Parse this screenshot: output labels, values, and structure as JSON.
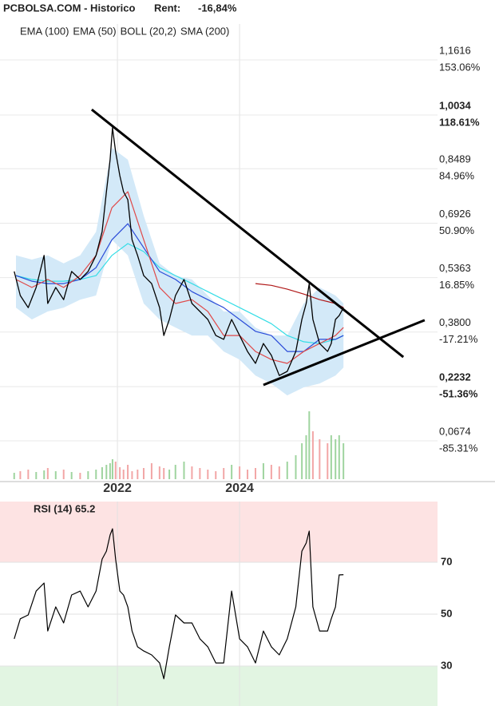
{
  "chart_data": [
    {
      "type": "line",
      "title": "PCBOLSA.COM - Historico",
      "subtitle": "Rent:",
      "rent": {
        "value": -16.84,
        "label": "-16,84%"
      },
      "rent_color": "#d62020",
      "xlim": [
        2020.078,
        2027.24
      ],
      "xticks": [
        2022,
        2024
      ],
      "ylim": [
        -0.0427,
        1.2648
      ],
      "yticks": [
        {
          "value": 1.1616,
          "label": "1,1616"
        },
        {
          "value": 1.0034,
          "label": "1,0034",
          "emphasis": true
        },
        {
          "value": 0.8489,
          "label": "0,8489"
        },
        {
          "value": 0.6926,
          "label": "0,6926"
        },
        {
          "value": 0.5363,
          "label": "0,5363"
        },
        {
          "value": 0.38,
          "label": "0,3800"
        },
        {
          "value": 0.2232,
          "label": "0,2232",
          "emphasis": true
        },
        {
          "value": 0.0674,
          "label": "0,0674"
        }
      ],
      "y2lim": [
        -109.3,
        175.55
      ],
      "y2ticks": [
        {
          "value": 153.06,
          "label": "153.06%"
        },
        {
          "value": 118.61,
          "label": "118.61%",
          "emphasis": true
        },
        {
          "value": 84.96,
          "label": "84.96%"
        },
        {
          "value": 50.9,
          "label": "50.90%"
        },
        {
          "value": 16.85,
          "label": "16.85%"
        },
        {
          "value": -17.21,
          "label": "-17.21%"
        },
        {
          "value": -51.36,
          "label": "-51.36%",
          "emphasis": true
        },
        {
          "value": -85.31,
          "label": "-85.31%"
        }
      ],
      "grid": true,
      "price": {
        "color": "#000000",
        "x": [
          2020.31,
          2020.41,
          2020.54,
          2020.67,
          2020.8,
          2020.86,
          2020.99,
          2021.12,
          2021.25,
          2021.39,
          2021.52,
          2021.65,
          2021.75,
          2021.82,
          2021.88,
          2021.92,
          2021.97,
          2022.04,
          2022.1,
          2022.17,
          2022.24,
          2022.33,
          2022.43,
          2022.56,
          2022.69,
          2022.76,
          2022.85,
          2022.95,
          2023.09,
          2023.22,
          2023.35,
          2023.48,
          2023.61,
          2023.74,
          2023.87,
          2024.0,
          2024.13,
          2024.26,
          2024.39,
          2024.52,
          2024.65,
          2024.78,
          2024.92,
          2025.02,
          2025.09,
          2025.14,
          2025.2,
          2025.31,
          2025.44,
          2025.5,
          2025.57,
          2025.63,
          2025.7
        ],
        "values": [
          0.554,
          0.485,
          0.45,
          0.508,
          0.6,
          0.462,
          0.508,
          0.473,
          0.554,
          0.531,
          0.554,
          0.6,
          0.668,
          0.783,
          0.875,
          0.967,
          0.898,
          0.829,
          0.783,
          0.76,
          0.645,
          0.6,
          0.542,
          0.519,
          0.45,
          0.37,
          0.416,
          0.485,
          0.531,
          0.462,
          0.439,
          0.416,
          0.37,
          0.359,
          0.416,
          0.37,
          0.324,
          0.29,
          0.347,
          0.313,
          0.255,
          0.267,
          0.324,
          0.416,
          0.462,
          0.519,
          0.416,
          0.347,
          0.324,
          0.347,
          0.416,
          0.427,
          0.45
        ]
      },
      "volume": {
        "ylim": [
          0,
          100
        ],
        "up_color": "#9fd49f",
        "down_color": "#f2a6a6",
        "values": [
          8,
          10,
          12,
          9,
          11,
          14,
          10,
          12,
          9,
          8,
          10,
          12,
          15,
          18,
          20,
          25,
          22,
          15,
          12,
          18,
          10,
          12,
          14,
          20,
          16,
          14,
          12,
          18,
          22,
          16,
          14,
          12,
          10,
          14,
          18,
          16,
          12,
          14,
          20,
          18,
          16,
          22,
          30,
          45,
          55,
          85,
          60,
          50,
          45,
          55,
          50,
          55,
          45
        ]
      },
      "x": [
        2020.34,
        2020.6,
        2020.86,
        2021.12,
        2021.39,
        2021.65,
        2021.91,
        2022.17,
        2022.43,
        2022.69,
        2022.95,
        2023.22,
        2023.48,
        2023.74,
        2024.0,
        2024.26,
        2024.52,
        2024.78,
        2025.05,
        2025.31,
        2025.57,
        2025.7
      ],
      "series": [
        {
          "name": "EMA (100)",
          "color": "#33dde6",
          "values": [
            0.542,
            0.531,
            0.526,
            0.526,
            0.531,
            0.542,
            0.6,
            0.634,
            0.611,
            0.565,
            0.542,
            0.519,
            0.496,
            0.473,
            0.45,
            0.427,
            0.404,
            0.37,
            0.352,
            0.347,
            0.359,
            0.37
          ]
        },
        {
          "name": "EMA (50)",
          "color": "#2a4bd8",
          "values": [
            0.542,
            0.526,
            0.519,
            0.519,
            0.531,
            0.565,
            0.645,
            0.691,
            0.622,
            0.554,
            0.531,
            0.496,
            0.473,
            0.45,
            0.416,
            0.382,
            0.37,
            0.324,
            0.324,
            0.359,
            0.359,
            0.37
          ]
        },
        {
          "name": "BOLL (20,2)",
          "color": "#e04848",
          "band_color": "#d3e9f8",
          "values": [
            0.531,
            0.508,
            0.531,
            0.508,
            0.542,
            0.6,
            0.737,
            0.783,
            0.645,
            0.508,
            0.462,
            0.473,
            0.439,
            0.37,
            0.37,
            0.324,
            0.301,
            0.29,
            0.324,
            0.347,
            0.37,
            0.393
          ],
          "upper": [
            0.6,
            0.588,
            0.6,
            0.577,
            0.6,
            0.668,
            0.909,
            0.875,
            0.714,
            0.577,
            0.542,
            0.531,
            0.485,
            0.439,
            0.439,
            0.393,
            0.37,
            0.37,
            0.462,
            0.508,
            0.485,
            0.462
          ],
          "lower": [
            0.45,
            0.416,
            0.439,
            0.45,
            0.473,
            0.485,
            0.645,
            0.6,
            0.462,
            0.416,
            0.393,
            0.37,
            0.37,
            0.324,
            0.301,
            0.255,
            0.232,
            0.198,
            0.221,
            0.232,
            0.255,
            0.278
          ]
        },
        {
          "name": "SMA (200)",
          "color": "#b01818",
          "values": [
            null,
            null,
            null,
            null,
            null,
            null,
            null,
            null,
            null,
            null,
            null,
            null,
            null,
            null,
            null,
            0.519,
            0.514,
            0.503,
            0.489,
            0.473,
            0.462,
            0.45
          ]
        }
      ],
      "trendlines": [
        {
          "x": [
            2021.58,
            2026.68
          ],
          "y": [
            1.019,
            0.308
          ]
        },
        {
          "x": [
            2024.39,
            2027.03
          ],
          "y": [
            0.228,
            0.414
          ]
        }
      ]
    },
    {
      "type": "line",
      "title": "RSI (14) 65.2",
      "xlim": [
        2020.078,
        2027.24
      ],
      "xticks": [
        2022,
        2024
      ],
      "ylim": [
        14.6,
        93.4
      ],
      "yticks": [
        70,
        50,
        30
      ],
      "tick_colors": [
        "#b03030",
        "#444444",
        "#3a9a3a"
      ],
      "zones": [
        {
          "from": 70,
          "to": 93.4,
          "color": "#fde3e3"
        },
        {
          "from": 14.6,
          "to": 30,
          "color": "#e2f5e2"
        }
      ],
      "color": "#000000",
      "x": [
        2020.31,
        2020.41,
        2020.54,
        2020.67,
        2020.8,
        2020.86,
        2020.99,
        2021.12,
        2021.25,
        2021.39,
        2021.52,
        2021.65,
        2021.75,
        2021.82,
        2021.88,
        2021.92,
        2021.97,
        2022.04,
        2022.1,
        2022.17,
        2022.24,
        2022.33,
        2022.43,
        2022.56,
        2022.69,
        2022.76,
        2022.85,
        2022.95,
        2023.09,
        2023.22,
        2023.35,
        2023.48,
        2023.61,
        2023.74,
        2023.87,
        2024.0,
        2024.13,
        2024.26,
        2024.39,
        2024.52,
        2024.65,
        2024.78,
        2024.92,
        2025.02,
        2025.09,
        2025.14,
        2025.2,
        2025.31,
        2025.44,
        2025.5,
        2025.57,
        2025.63,
        2025.7
      ],
      "values": [
        40.5,
        48.2,
        49.7,
        58.9,
        62.0,
        43.5,
        52.8,
        46.6,
        57.4,
        58.9,
        52.8,
        58.9,
        71.2,
        74.3,
        80.5,
        82.9,
        71.2,
        58.9,
        57.4,
        52.8,
        43.5,
        37.4,
        35.8,
        34.3,
        31.2,
        25.1,
        37.4,
        49.7,
        46.6,
        46.6,
        40.5,
        37.4,
        31.2,
        31.2,
        58.9,
        40.5,
        37.4,
        31.2,
        43.5,
        37.4,
        34.3,
        40.5,
        52.8,
        74.3,
        77.4,
        82.0,
        52.8,
        43.5,
        43.5,
        48.2,
        52.8,
        65.1,
        65.2
      ]
    }
  ]
}
